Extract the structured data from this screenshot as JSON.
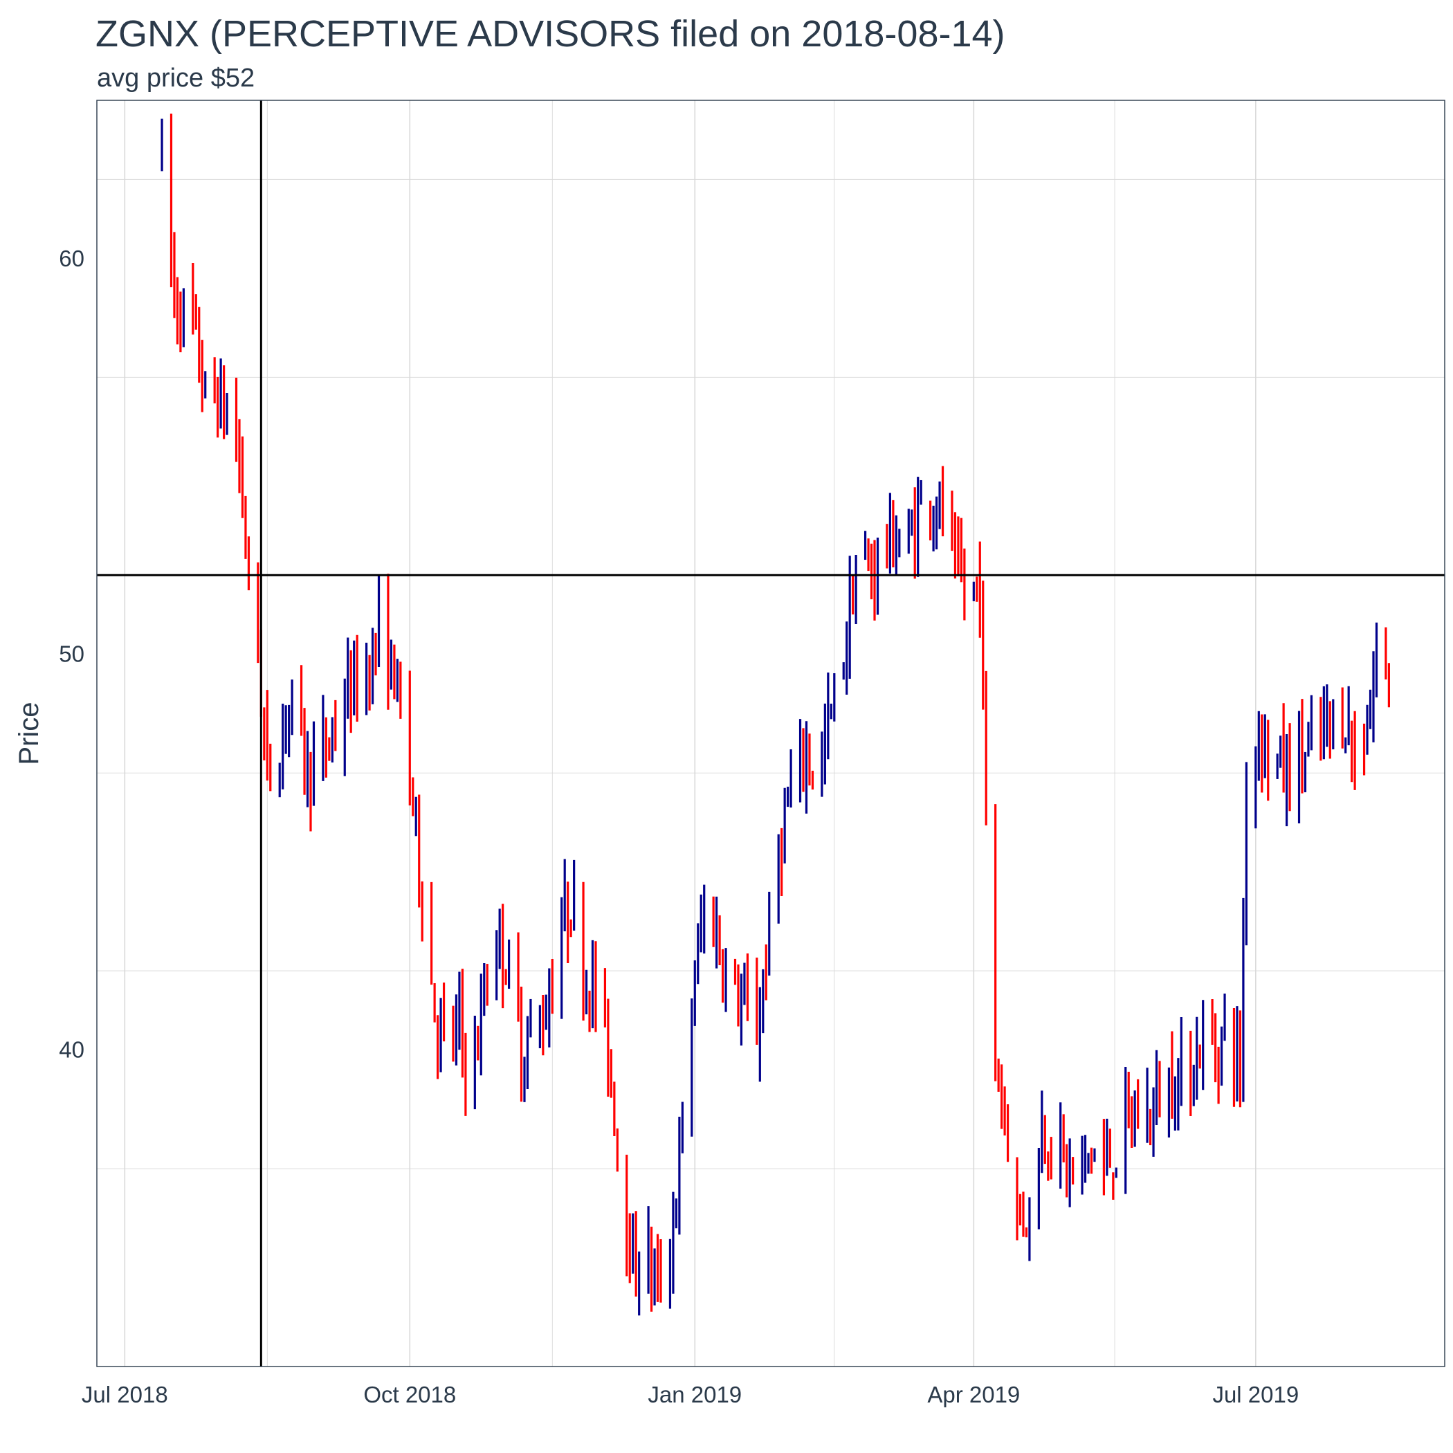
{
  "chart_data": {
    "type": "ohlc",
    "title": "ZGNX (PERCEPTIVE ADVISORS filed on 2018-08-14)",
    "subtitle": "avg price $52",
    "ylabel": "Price",
    "xlabel": "",
    "x_range": [
      "2018-06-22",
      "2019-08-31"
    ],
    "ylim": [
      32,
      64
    ],
    "y_ticks": [
      40,
      50,
      60
    ],
    "x_ticks": [
      {
        "date": "2018-07-01",
        "label": "Jul 2018"
      },
      {
        "date": "2018-10-01",
        "label": "Oct 2018"
      },
      {
        "date": "2019-01-01",
        "label": "Jan 2019"
      },
      {
        "date": "2019-04-01",
        "label": "Apr 2019"
      },
      {
        "date": "2019-07-01",
        "label": "Jul 2019"
      }
    ],
    "reference_lines": {
      "vertical_date": "2018-08-14",
      "horizontal_price": 52
    },
    "grid": true,
    "colors": {
      "up": "#00008b",
      "down": "#ff0000",
      "reference": "#000000",
      "grid": "#d9d9d9"
    },
    "start_date": "2018-07-13",
    "start_price": 62.6,
    "series_path": [
      [
        0,
        62.6
      ],
      [
        4,
        59.0
      ],
      [
        10,
        58.3
      ],
      [
        14,
        56.5
      ],
      [
        18,
        56.5
      ],
      [
        24,
        55.5
      ],
      [
        27,
        53.0
      ],
      [
        29,
        50.5
      ],
      [
        31,
        50.0
      ],
      [
        34,
        47.0
      ],
      [
        38,
        47.5
      ],
      [
        40,
        48.8
      ],
      [
        43,
        48.6
      ],
      [
        47,
        47.0
      ],
      [
        52,
        47.5
      ],
      [
        55,
        48.0
      ],
      [
        60,
        49.0
      ],
      [
        66,
        49.6
      ],
      [
        70,
        50.5
      ],
      [
        75,
        49.5
      ],
      [
        80,
        47.0
      ],
      [
        84,
        44.0
      ],
      [
        88,
        41.0
      ],
      [
        92,
        40.0
      ],
      [
        96,
        40.6
      ],
      [
        100,
        39.0
      ],
      [
        104,
        41.5
      ],
      [
        108,
        43.0
      ],
      [
        112,
        42.0
      ],
      [
        116,
        40.0
      ],
      [
        120,
        40.5
      ],
      [
        124,
        41.0
      ],
      [
        128,
        43.0
      ],
      [
        132,
        43.8
      ],
      [
        136,
        42.0
      ],
      [
        140,
        41.5
      ],
      [
        144,
        40.0
      ],
      [
        148,
        37.0
      ],
      [
        152,
        34.5
      ],
      [
        156,
        35.0
      ],
      [
        160,
        34.0
      ],
      [
        164,
        35.0
      ],
      [
        168,
        38.0
      ],
      [
        172,
        42.0
      ],
      [
        176,
        44.0
      ],
      [
        180,
        42.5
      ],
      [
        184,
        41.5
      ],
      [
        188,
        41.0
      ],
      [
        192,
        40.5
      ],
      [
        196,
        43.0
      ],
      [
        200,
        45.5
      ],
      [
        204,
        46.8
      ],
      [
        208,
        47.5
      ],
      [
        212,
        47.0
      ],
      [
        216,
        48.5
      ],
      [
        220,
        50.0
      ],
      [
        224,
        52.3
      ],
      [
        228,
        52.0
      ],
      [
        232,
        52.6
      ],
      [
        236,
        53.0
      ],
      [
        240,
        52.5
      ],
      [
        244,
        53.6
      ],
      [
        248,
        54.0
      ],
      [
        252,
        53.5
      ],
      [
        256,
        52.0
      ],
      [
        260,
        51.5
      ],
      [
        264,
        51.8
      ],
      [
        268,
        40.0
      ],
      [
        272,
        38.5
      ],
      [
        276,
        35.8
      ],
      [
        280,
        36.0
      ],
      [
        284,
        38.0
      ],
      [
        288,
        37.8
      ],
      [
        292,
        37.0
      ],
      [
        296,
        36.7
      ],
      [
        300,
        37.5
      ],
      [
        304,
        37.0
      ],
      [
        308,
        37.5
      ],
      [
        312,
        38.2
      ],
      [
        316,
        38.3
      ],
      [
        320,
        38.5
      ],
      [
        324,
        39.2
      ],
      [
        328,
        39.3
      ],
      [
        332,
        39.5
      ],
      [
        336,
        40.3
      ],
      [
        340,
        40.0
      ],
      [
        344,
        40.6
      ],
      [
        348,
        39.5
      ],
      [
        350,
        47.0
      ],
      [
        354,
        48.0
      ],
      [
        358,
        47.5
      ],
      [
        362,
        47.0
      ],
      [
        366,
        47.3
      ],
      [
        370,
        47.5
      ],
      [
        374,
        48.0
      ],
      [
        378,
        48.2
      ],
      [
        382,
        48.5
      ],
      [
        386,
        47.0
      ],
      [
        390,
        48.8
      ],
      [
        392,
        50.0
      ],
      [
        396,
        49.4
      ]
    ]
  }
}
